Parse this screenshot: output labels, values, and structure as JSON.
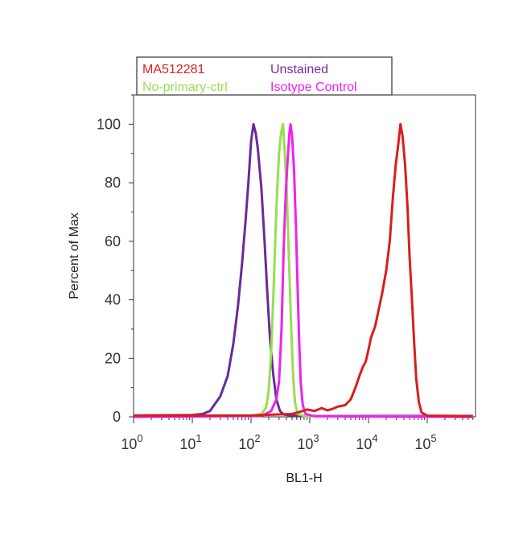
{
  "chart_data": {
    "type": "line",
    "xscale": "log",
    "xlabel": "BL1-H",
    "ylabel": "Percent of Max",
    "xlim": [
      1,
      600000
    ],
    "ylim": [
      0,
      110
    ],
    "x_ticks": [
      {
        "base": "10",
        "exp": "0"
      },
      {
        "base": "10",
        "exp": "1"
      },
      {
        "base": "10",
        "exp": "2"
      },
      {
        "base": "10",
        "exp": "3"
      },
      {
        "base": "10",
        "exp": "4"
      },
      {
        "base": "10",
        "exp": "5"
      }
    ],
    "y_ticks": [
      "0",
      "20",
      "40",
      "60",
      "80",
      "100"
    ],
    "legend": {
      "position": "top",
      "entries": [
        {
          "name": "MA512281",
          "color": "#e01e1e"
        },
        {
          "name": "Unstained",
          "color": "#7a2aa8"
        },
        {
          "name": "No-primary-ctrl",
          "color": "#96de50"
        },
        {
          "name": "Isotype Control",
          "color": "#ee22ee"
        }
      ]
    },
    "series": [
      {
        "name": "Unstained",
        "color": "#6a2a9a",
        "points": [
          [
            1,
            0.5
          ],
          [
            10,
            0.6
          ],
          [
            15,
            1
          ],
          [
            20,
            2
          ],
          [
            30,
            7
          ],
          [
            40,
            14
          ],
          [
            50,
            25
          ],
          [
            60,
            38
          ],
          [
            70,
            52
          ],
          [
            80,
            66
          ],
          [
            90,
            80
          ],
          [
            100,
            94
          ],
          [
            110,
            100
          ],
          [
            120,
            97
          ],
          [
            130,
            92
          ],
          [
            150,
            78
          ],
          [
            170,
            60
          ],
          [
            190,
            42
          ],
          [
            210,
            27
          ],
          [
            240,
            14
          ],
          [
            270,
            6
          ],
          [
            310,
            2
          ],
          [
            360,
            0.8
          ],
          [
            500,
            0.4
          ],
          [
            1000,
            0.3
          ],
          [
            10000,
            0.3
          ],
          [
            100000,
            0.3
          ],
          [
            600000,
            0.3
          ]
        ]
      },
      {
        "name": "No-primary-ctrl",
        "color": "#96de50",
        "points": [
          [
            1,
            0
          ],
          [
            100,
            0.3
          ],
          [
            150,
            1
          ],
          [
            180,
            3
          ],
          [
            200,
            9
          ],
          [
            220,
            22
          ],
          [
            240,
            42
          ],
          [
            260,
            62
          ],
          [
            280,
            78
          ],
          [
            300,
            90
          ],
          [
            320,
            96
          ],
          [
            340,
            99
          ],
          [
            350,
            100
          ],
          [
            370,
            92
          ],
          [
            400,
            80
          ],
          [
            440,
            55
          ],
          [
            480,
            32
          ],
          [
            520,
            14
          ],
          [
            560,
            5
          ],
          [
            620,
            1
          ],
          [
            800,
            0.3
          ],
          [
            600000,
            0
          ]
        ]
      },
      {
        "name": "Isotype Control",
        "color": "#ee22ee",
        "points": [
          [
            1,
            0
          ],
          [
            150,
            0.3
          ],
          [
            220,
            2
          ],
          [
            270,
            6
          ],
          [
            300,
            12
          ],
          [
            330,
            30
          ],
          [
            360,
            58
          ],
          [
            390,
            76
          ],
          [
            420,
            88
          ],
          [
            450,
            97
          ],
          [
            470,
            100
          ],
          [
            500,
            96
          ],
          [
            540,
            84
          ],
          [
            580,
            66
          ],
          [
            620,
            45
          ],
          [
            660,
            26
          ],
          [
            700,
            12
          ],
          [
            760,
            4
          ],
          [
            850,
            1
          ],
          [
            1200,
            0.2
          ],
          [
            600000,
            0
          ]
        ]
      },
      {
        "name": "MA512281",
        "color": "#d81e1e",
        "points": [
          [
            1,
            0.4
          ],
          [
            100,
            0.5
          ],
          [
            500,
            1
          ],
          [
            700,
            1.8
          ],
          [
            900,
            2.5
          ],
          [
            1200,
            2
          ],
          [
            1600,
            3
          ],
          [
            2000,
            2.2
          ],
          [
            2500,
            2.8
          ],
          [
            3000,
            3.5
          ],
          [
            4000,
            4
          ],
          [
            5000,
            6
          ],
          [
            6000,
            10
          ],
          [
            7000,
            14
          ],
          [
            8000,
            17
          ],
          [
            9000,
            19
          ],
          [
            10000,
            23
          ],
          [
            11000,
            27
          ],
          [
            13000,
            31
          ],
          [
            15000,
            37
          ],
          [
            17000,
            42
          ],
          [
            20000,
            50
          ],
          [
            23000,
            60
          ],
          [
            26000,
            75
          ],
          [
            29000,
            86
          ],
          [
            32000,
            93
          ],
          [
            35000,
            100
          ],
          [
            38000,
            96
          ],
          [
            42000,
            86
          ],
          [
            46000,
            72
          ],
          [
            50000,
            55
          ],
          [
            55000,
            40
          ],
          [
            60000,
            25
          ],
          [
            65000,
            13
          ],
          [
            72000,
            5
          ],
          [
            80000,
            1.5
          ],
          [
            100000,
            0.4
          ],
          [
            600000,
            0.2
          ]
        ]
      }
    ]
  }
}
